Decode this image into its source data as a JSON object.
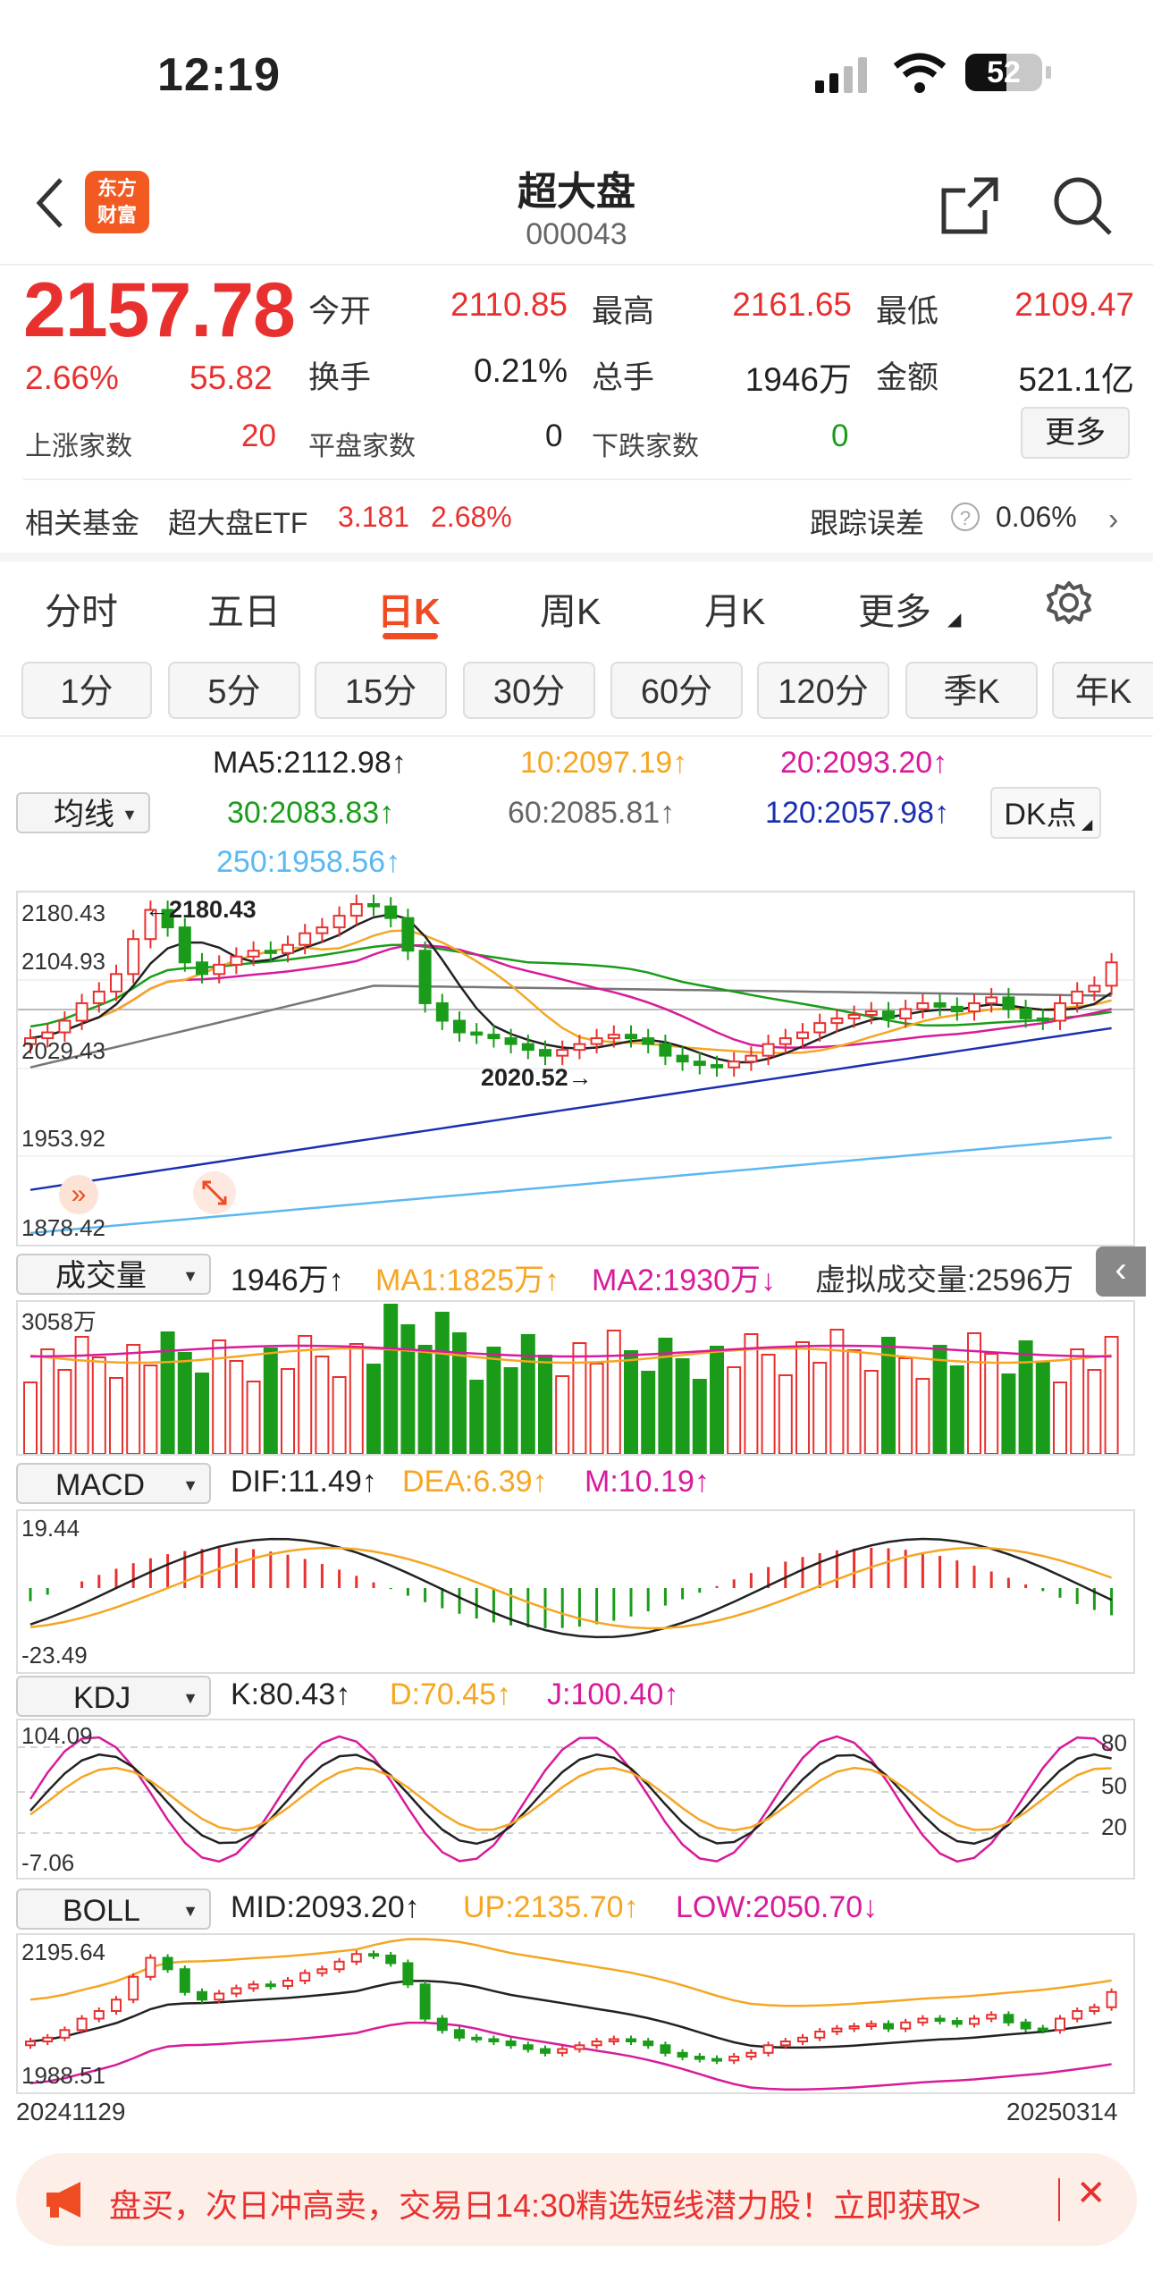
{
  "status_bar": {
    "time": "12:19",
    "battery": "52"
  },
  "header": {
    "title": "超大盘",
    "code": "000043",
    "logo_text_1": "东方",
    "logo_text_2": "财富"
  },
  "quote": {
    "price": "2157.78",
    "pct": "2.66%",
    "change": "55.82",
    "open_label": "今开",
    "open": "2110.85",
    "high_label": "最高",
    "high": "2161.65",
    "low_label": "最低",
    "low": "2109.47",
    "turnover_label": "换手",
    "turnover": "0.21%",
    "volume_label": "总手",
    "volume": "1946万",
    "amount_label": "金额",
    "amount": "521.1亿",
    "up_label": "上涨家数",
    "up": "20",
    "flat_label": "平盘家数",
    "flat": "0",
    "down_label": "下跌家数",
    "down": "0",
    "more_button": "更多"
  },
  "fund": {
    "label": "相关基金",
    "name": "超大盘ETF",
    "price": "3.181",
    "pct": "2.68%",
    "tracking_label": "跟踪误差",
    "tracking_value": "0.06%"
  },
  "tabs": [
    "分时",
    "五日",
    "日K",
    "周K",
    "月K",
    "更多"
  ],
  "active_tab": "日K",
  "periods": [
    "1分",
    "5分",
    "15分",
    "30分",
    "60分",
    "120分",
    "季K",
    "年K"
  ],
  "ma": {
    "selector": "均线",
    "dk_button": "DK点",
    "ma5": "MA5:2112.98↑",
    "ma10": "10:2097.19↑",
    "ma20": "20:2093.20↑",
    "ma30": "30:2083.83↑",
    "ma60": "60:2085.81↑",
    "ma120": "120:2057.98↑",
    "ma250": "250:1958.56↑"
  },
  "kline_axis": {
    "a": "2180.43",
    "b": "2104.93",
    "c": "2029.43",
    "d": "1953.92",
    "e": "1878.42",
    "max_note": "←2180.43",
    "min_note": "2020.52→"
  },
  "volume": {
    "selector": "成交量",
    "value": "1946万↑",
    "ma1": "MA1:1825万↑",
    "ma2": "MA2:1930万↓",
    "virtual": "虚拟成交量:2596万",
    "axis_top": "3058万"
  },
  "macd": {
    "selector": "MACD",
    "dif": "DIF:11.49↑",
    "dea": "DEA:6.39↑",
    "m": "M:10.19↑",
    "axis_top": "19.44",
    "axis_bottom": "-23.49"
  },
  "kdj": {
    "selector": "KDJ",
    "k": "K:80.43↑",
    "d": "D:70.45↑",
    "j": "J:100.40↑",
    "axis_top": "104.09",
    "axis_bottom": "-7.06",
    "r80": "80",
    "r50": "50",
    "r20": "20"
  },
  "boll": {
    "selector": "BOLL",
    "mid": "MID:2093.20↑",
    "up": "UP:2135.70↑",
    "low": "LOW:2050.70↓",
    "axis_top": "2195.64",
    "axis_bottom": "1988.51"
  },
  "dates": {
    "start": "20241129",
    "end": "20250314"
  },
  "banner": {
    "text": "盘买，次日冲高卖，交易日14:30精选短线潜力股！立即获取>"
  },
  "colors": {
    "up": "#e8312f",
    "down": "#1a9c1a",
    "ma5": "#222222",
    "ma10": "#f5a623",
    "ma20": "#d81b9a",
    "ma30": "#1a9c1a",
    "ma60": "#777777",
    "ma120": "#1b2fb0",
    "ma250": "#5bb8f0"
  }
}
